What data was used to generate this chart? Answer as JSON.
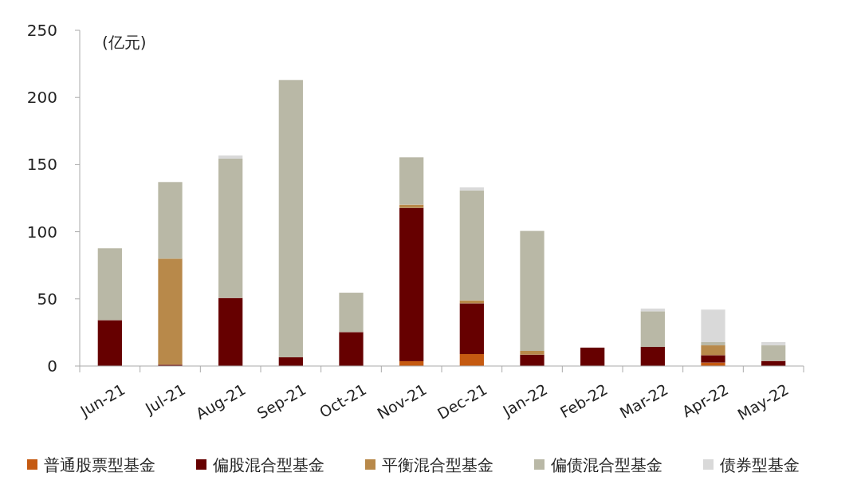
{
  "chart_data": {
    "type": "bar",
    "stacked": true,
    "ylabel": "(亿元)",
    "categories": [
      "Jun-21",
      "Jul-21",
      "Aug-21",
      "Sep-21",
      "Oct-21",
      "Nov-21",
      "Dec-21",
      "Jan-22",
      "Feb-22",
      "Mar-22",
      "Apr-22",
      "May-22"
    ],
    "series": [
      {
        "name": "普通股票型基金",
        "color": "#c55a11",
        "values": [
          0,
          0,
          0,
          0,
          0,
          3.6,
          8.9,
          0,
          0,
          0,
          2.6,
          0
        ]
      },
      {
        "name": "偏股混合型基金",
        "color": "#660000",
        "values": [
          34.2,
          1,
          50.7,
          6.5,
          25.3,
          114.2,
          37.8,
          8.5,
          13.7,
          14.3,
          5.5,
          3.8
        ]
      },
      {
        "name": "平衡混合型基金",
        "color": "#b8894a",
        "values": [
          0,
          79,
          0,
          0,
          0,
          2.4,
          2.2,
          2.8,
          0,
          0,
          7.3,
          0
        ]
      },
      {
        "name": "偏债混合型基金",
        "color": "#b9b8a6",
        "values": [
          53.5,
          57,
          103.7,
          206.5,
          29.3,
          35.2,
          81.9,
          89.3,
          0,
          26.5,
          2.4,
          11.6
        ]
      },
      {
        "name": "债券型基金",
        "color": "#d9d9d9",
        "values": [
          0,
          0,
          2.4,
          0,
          0,
          0,
          2.2,
          0,
          0,
          2,
          24.2,
          2.4
        ]
      }
    ],
    "ylim": [
      0,
      250
    ],
    "yticks": [
      0,
      50,
      100,
      150,
      200,
      250
    ],
    "grid": false,
    "legend": "bottom"
  }
}
